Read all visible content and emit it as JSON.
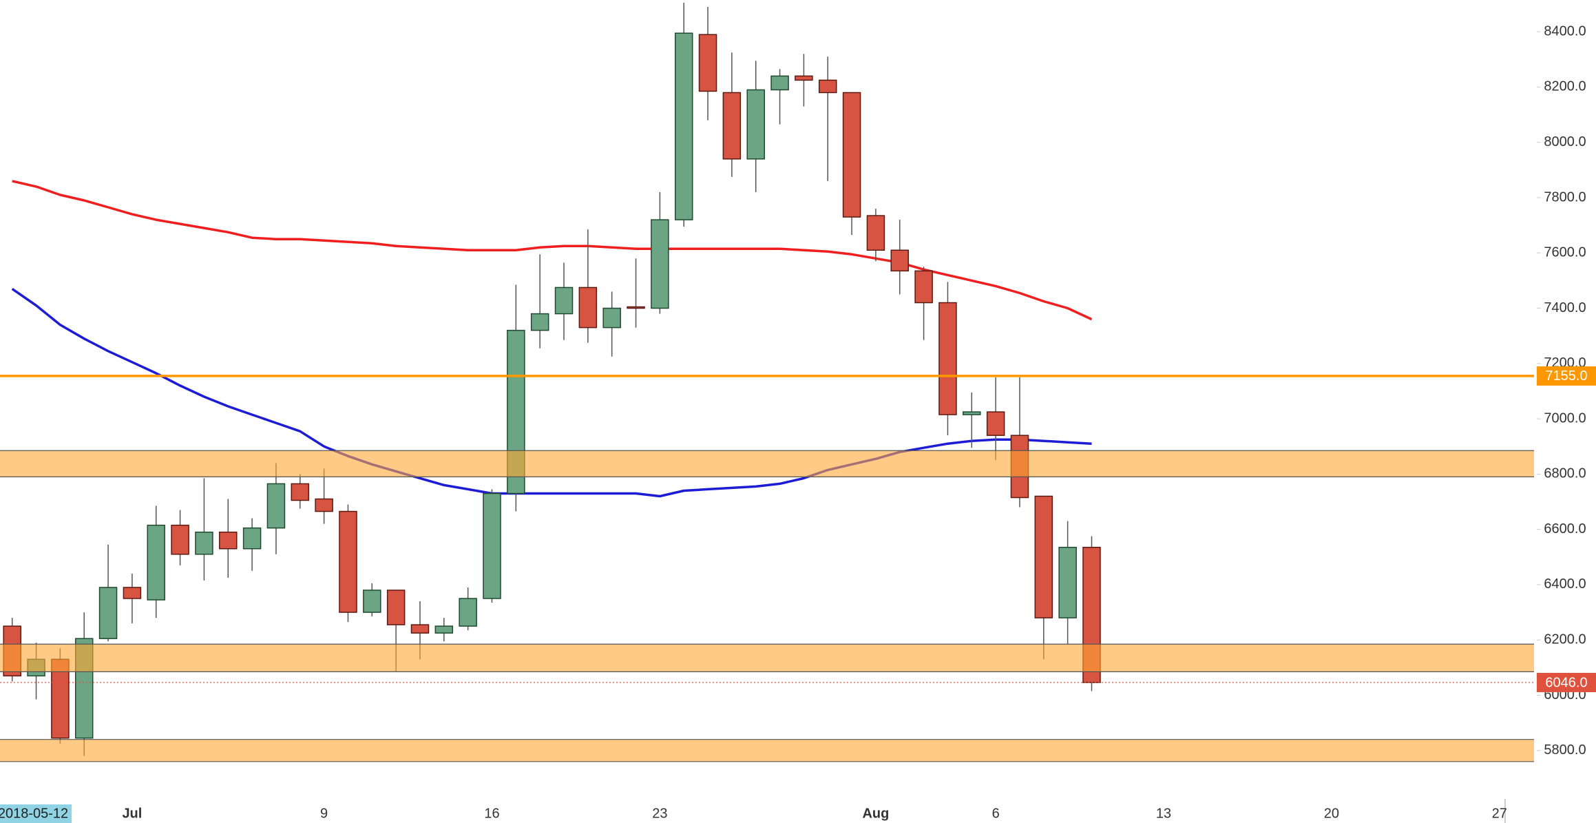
{
  "chart_data": {
    "type": "candlestick",
    "crosshair_label": "2018-05-12",
    "categories": [
      null,
      null,
      null,
      null,
      null,
      "Jul",
      null,
      null,
      null,
      null,
      null,
      null,
      null,
      "9",
      null,
      null,
      null,
      null,
      null,
      null,
      "16",
      null,
      null,
      null,
      null,
      null,
      null,
      "23",
      null,
      null,
      null,
      null,
      null,
      null,
      null,
      null,
      "Aug",
      null,
      null,
      null,
      null,
      "6",
      null,
      null,
      null,
      null,
      null,
      null,
      "13",
      null,
      null,
      null,
      null,
      null,
      null,
      "20",
      null,
      null,
      null,
      null,
      null,
      null,
      "27"
    ],
    "open": [
      6250,
      6070,
      6130,
      5845,
      6205,
      6390,
      6345,
      6615,
      6510,
      6590,
      6530,
      6605,
      6765,
      6710,
      6665,
      6300,
      6380,
      6255,
      6225,
      6250,
      6350,
      6730,
      7320,
      7380,
      7475,
      7330,
      7405,
      7400,
      7720,
      8390,
      8180,
      7940,
      8190,
      8240,
      8225,
      8180,
      7735,
      7610,
      7535,
      7420,
      7015,
      7025,
      6940,
      6720,
      6280,
      6535,
      null,
      null,
      null,
      null,
      null,
      null,
      null,
      null,
      null,
      null,
      null,
      null,
      null,
      null,
      null,
      null,
      null
    ],
    "high": [
      6280,
      6190,
      6170,
      6300,
      6545,
      6440,
      6685,
      6670,
      6785,
      6710,
      6640,
      6840,
      6800,
      6820,
      6690,
      6405,
      6380,
      6340,
      6280,
      6390,
      6745,
      7485,
      7595,
      7565,
      7685,
      7460,
      7580,
      7820,
      8505,
      8490,
      8325,
      8295,
      8265,
      8320,
      8310,
      8180,
      7760,
      7720,
      7550,
      7495,
      7095,
      7150,
      7150,
      6720,
      6630,
      6575,
      null,
      null,
      null,
      null,
      null,
      null,
      null,
      null,
      null,
      null,
      null,
      null,
      null,
      null,
      null,
      null,
      null
    ],
    "low": [
      6050,
      5985,
      5825,
      5780,
      6195,
      6260,
      6280,
      6470,
      6415,
      6425,
      6450,
      6510,
      6675,
      6620,
      6265,
      6285,
      6085,
      6130,
      6195,
      6235,
      6335,
      6665,
      7255,
      7285,
      7275,
      7225,
      7330,
      7380,
      7695,
      8080,
      7875,
      7820,
      8065,
      8130,
      7860,
      7665,
      7570,
      7450,
      7285,
      6940,
      6895,
      6850,
      6680,
      6130,
      6185,
      6015,
      null,
      null,
      null,
      null,
      null,
      null,
      null,
      null,
      null,
      null,
      null,
      null,
      null,
      null,
      null,
      null,
      null
    ],
    "close": [
      6070,
      6130,
      5845,
      6205,
      6390,
      6350,
      6615,
      6510,
      6590,
      6530,
      6605,
      6765,
      6705,
      6665,
      6300,
      6380,
      6255,
      6225,
      6250,
      6350,
      6730,
      7320,
      7380,
      7475,
      7330,
      7400,
      7400,
      7720,
      8395,
      8185,
      7940,
      8190,
      8240,
      8225,
      8180,
      7730,
      7610,
      7535,
      7420,
      7015,
      7025,
      6940,
      6715,
      6280,
      6535,
      6046,
      null,
      null,
      null,
      null,
      null,
      null,
      null,
      null,
      null,
      null,
      null,
      null,
      null,
      null,
      null,
      null,
      null
    ],
    "up_color": "#6ba583",
    "down_color": "#d75442",
    "lines": [
      {
        "color": "#f01e1e",
        "values": [
          7860,
          7840,
          7810,
          7790,
          7765,
          7740,
          7720,
          7705,
          7690,
          7675,
          7655,
          7650,
          7650,
          7645,
          7640,
          7635,
          7625,
          7620,
          7615,
          7610,
          7610,
          7610,
          7620,
          7625,
          7625,
          7620,
          7615,
          7615,
          7615,
          7615,
          7615,
          7615,
          7615,
          7610,
          7605,
          7595,
          7580,
          7565,
          7540,
          7520,
          7500,
          7480,
          7455,
          7425,
          7400,
          7360,
          null,
          null,
          null,
          null,
          null,
          null,
          null,
          null,
          null,
          null,
          null,
          null,
          null,
          null,
          null,
          null,
          null
        ]
      },
      {
        "color": "#1c1cd6",
        "values": [
          7470,
          7410,
          7340,
          7290,
          7245,
          7205,
          7165,
          7120,
          7080,
          7045,
          7015,
          6985,
          6955,
          6900,
          6865,
          6835,
          6810,
          6785,
          6760,
          6745,
          6730,
          6730,
          6730,
          6730,
          6730,
          6730,
          6730,
          6720,
          6740,
          6745,
          6750,
          6755,
          6765,
          6785,
          6815,
          6835,
          6855,
          6880,
          6895,
          6910,
          6920,
          6925,
          6925,
          6920,
          6915,
          6910,
          null,
          null,
          null,
          null,
          null,
          null,
          null,
          null,
          null,
          null,
          null,
          null,
          null,
          null,
          null,
          null,
          null
        ]
      }
    ],
    "zones": [
      {
        "from": 6790,
        "to": 6885
      },
      {
        "from": 6085,
        "to": 6185
      },
      {
        "from": 5760,
        "to": 5840
      }
    ],
    "zone_color": "#ffa733",
    "price_lines": [
      {
        "value": 7155,
        "label": "7155.0",
        "color": "#ff9800",
        "style": "solid"
      },
      {
        "value": 6046,
        "label": "6046.0",
        "color": "#e0513d",
        "style": "dotted"
      }
    ],
    "ylim": [
      5625,
      8515
    ],
    "yticks": [
      {
        "value": 5800,
        "label": "5800.0"
      },
      {
        "value": 6000,
        "label": "6000.0"
      },
      {
        "value": 6200,
        "label": "6200.0"
      },
      {
        "value": 6400,
        "label": "6400.0"
      },
      {
        "value": 6600,
        "label": "6600.0"
      },
      {
        "value": 6800,
        "label": "6800.0"
      },
      {
        "value": 7000,
        "label": "7000.0"
      },
      {
        "value": 7200,
        "label": "7200.0"
      },
      {
        "value": 7400,
        "label": "7400.0"
      },
      {
        "value": 7600,
        "label": "7600.0"
      },
      {
        "value": 7800,
        "label": "7800.0"
      },
      {
        "value": 8000,
        "label": "8000.0"
      },
      {
        "value": 8200,
        "label": "8200.0"
      },
      {
        "value": 8400,
        "label": "8400.0"
      }
    ]
  }
}
